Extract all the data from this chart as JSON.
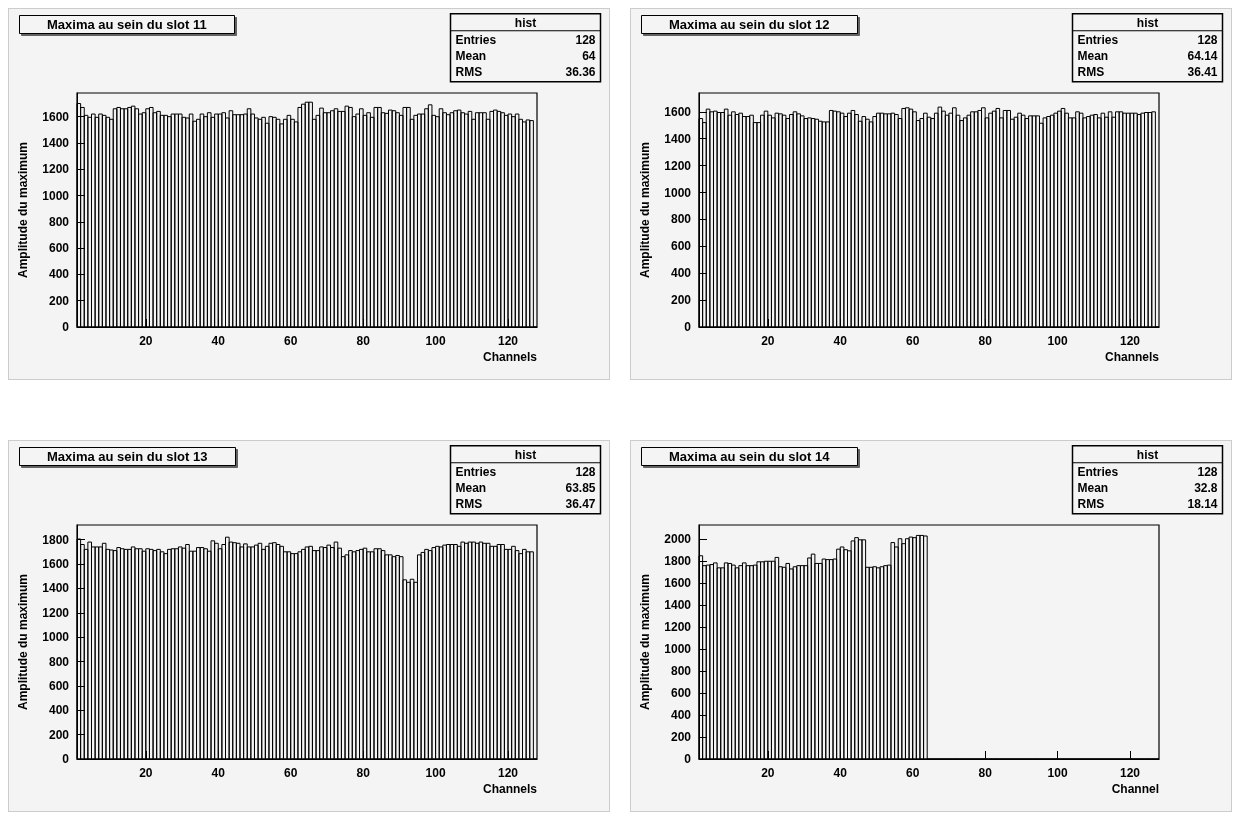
{
  "chart_data": [
    {
      "type": "histogram",
      "title": "Maxima au sein du slot 11",
      "xlabel": "Channels",
      "ylabel": "Amplitude du maximum",
      "color": "#000000",
      "xlim": [
        1,
        128
      ],
      "xticks": [
        20,
        40,
        60,
        80,
        100,
        120
      ],
      "ylim": [
        0,
        1780
      ],
      "yticks": [
        0,
        200,
        400,
        600,
        800,
        1000,
        1200,
        1400,
        1600
      ],
      "annotations": [
        "hist",
        "Entries",
        "128",
        "Mean",
        "64",
        "RMS",
        "36.36"
      ],
      "bins": [
        1,
        2,
        3,
        4,
        5,
        6,
        7,
        8,
        9,
        10,
        11,
        12,
        13,
        14,
        15,
        16,
        17,
        18,
        19,
        20,
        21,
        22,
        23,
        24,
        25,
        26,
        27,
        28,
        29,
        30,
        31,
        32,
        33,
        34,
        35,
        36,
        37,
        38,
        39,
        40,
        41,
        42,
        43,
        44,
        45,
        46,
        47,
        48,
        49,
        50,
        51,
        52,
        53,
        54,
        55,
        56,
        57,
        58,
        59,
        60,
        61,
        62,
        63,
        64,
        65,
        66,
        67,
        68,
        69,
        70,
        71,
        72,
        73,
        74,
        75,
        76,
        77,
        78,
        79,
        80,
        81,
        82,
        83,
        84,
        85,
        86,
        87,
        88,
        89,
        90,
        91,
        92,
        93,
        94,
        95,
        96,
        97,
        98,
        99,
        100,
        101,
        102,
        103,
        104,
        105,
        106,
        107,
        108,
        109,
        110,
        111,
        112,
        113,
        114,
        115,
        116,
        117,
        118,
        119,
        120,
        121,
        122,
        123,
        124,
        125,
        126,
        127,
        128
      ],
      "values": [
        1700,
        1670,
        1610,
        1595,
        1620,
        1595,
        1620,
        1610,
        1595,
        1580,
        1660,
        1670,
        1660,
        1660,
        1670,
        1680,
        1660,
        1620,
        1630,
        1660,
        1670,
        1630,
        1640,
        1610,
        1610,
        1600,
        1620,
        1620,
        1620,
        1595,
        1590,
        1620,
        1565,
        1580,
        1620,
        1600,
        1630,
        1595,
        1620,
        1620,
        1630,
        1590,
        1645,
        1615,
        1615,
        1615,
        1620,
        1660,
        1620,
        1590,
        1580,
        1595,
        1550,
        1600,
        1595,
        1580,
        1545,
        1580,
        1610,
        1580,
        1560,
        1670,
        1695,
        1710,
        1710,
        1580,
        1610,
        1665,
        1630,
        1630,
        1645,
        1660,
        1640,
        1640,
        1680,
        1670,
        1600,
        1620,
        1660,
        1610,
        1630,
        1595,
        1670,
        1670,
        1630,
        1625,
        1650,
        1645,
        1630,
        1610,
        1670,
        1670,
        1580,
        1610,
        1620,
        1620,
        1660,
        1690,
        1610,
        1600,
        1660,
        1630,
        1615,
        1630,
        1645,
        1650,
        1630,
        1620,
        1640,
        1580,
        1630,
        1630,
        1630,
        1580,
        1640,
        1650,
        1640,
        1630,
        1610,
        1620,
        1600,
        1620,
        1580,
        1560,
        1575,
        1570,
        0
      ]
    },
    {
      "type": "histogram",
      "title": "Maxima au sein du slot 12",
      "xlabel": "Channels",
      "ylabel": "Amplitude du maximum",
      "color": "#000000",
      "xlim": [
        1,
        128
      ],
      "xticks": [
        20,
        40,
        60,
        80,
        100,
        120
      ],
      "ylim": [
        0,
        1740
      ],
      "yticks": [
        0,
        200,
        400,
        600,
        800,
        1000,
        1200,
        1400,
        1600
      ],
      "annotations": [
        "hist",
        "Entries",
        "128",
        "Mean",
        "64.14",
        "RMS",
        "36.41"
      ],
      "bins": [
        1,
        2,
        3,
        4,
        5,
        6,
        7,
        8,
        9,
        10,
        11,
        12,
        13,
        14,
        15,
        16,
        17,
        18,
        19,
        20,
        21,
        22,
        23,
        24,
        25,
        26,
        27,
        28,
        29,
        30,
        31,
        32,
        33,
        34,
        35,
        36,
        37,
        38,
        39,
        40,
        41,
        42,
        43,
        44,
        45,
        46,
        47,
        48,
        49,
        50,
        51,
        52,
        53,
        54,
        55,
        56,
        57,
        58,
        59,
        60,
        61,
        62,
        63,
        64,
        65,
        66,
        67,
        68,
        69,
        70,
        71,
        72,
        73,
        74,
        75,
        76,
        77,
        78,
        79,
        80,
        81,
        82,
        83,
        84,
        85,
        86,
        87,
        88,
        89,
        90,
        91,
        92,
        93,
        94,
        95,
        96,
        97,
        98,
        99,
        100,
        101,
        102,
        103,
        104,
        105,
        106,
        107,
        108,
        109,
        110,
        111,
        112,
        113,
        114,
        115,
        116,
        117,
        118,
        119,
        120,
        121,
        122,
        123,
        124,
        125,
        126,
        127,
        128
      ],
      "values": [
        1550,
        1520,
        1620,
        1600,
        1605,
        1595,
        1595,
        1620,
        1575,
        1600,
        1580,
        1590,
        1565,
        1565,
        1575,
        1520,
        1520,
        1575,
        1605,
        1575,
        1555,
        1590,
        1585,
        1575,
        1550,
        1580,
        1600,
        1585,
        1570,
        1550,
        1555,
        1550,
        1545,
        1530,
        1525,
        1525,
        1610,
        1605,
        1600,
        1590,
        1565,
        1590,
        1610,
        1580,
        1530,
        1565,
        1545,
        1525,
        1565,
        1590,
        1590,
        1585,
        1585,
        1590,
        1580,
        1550,
        1625,
        1630,
        1620,
        1600,
        1535,
        1550,
        1590,
        1560,
        1550,
        1590,
        1635,
        1605,
        1575,
        1590,
        1630,
        1575,
        1535,
        1555,
        1575,
        1600,
        1600,
        1610,
        1630,
        1555,
        1590,
        1605,
        1625,
        1555,
        1610,
        1610,
        1545,
        1560,
        1590,
        1575,
        1550,
        1570,
        1570,
        1570,
        1515,
        1555,
        1565,
        1575,
        1590,
        1605,
        1625,
        1590,
        1555,
        1555,
        1600,
        1590,
        1555,
        1565,
        1575,
        1580,
        1555,
        1590,
        1560,
        1600,
        1560,
        1600,
        1600,
        1590,
        1590,
        1590,
        1590,
        1580,
        1590,
        1595,
        1595,
        1600,
        0
      ]
    },
    {
      "type": "histogram",
      "title": "Maxima au sein du slot 13",
      "xlabel": "Channels",
      "ylabel": "Amplitude du maximum",
      "color": "#000000",
      "xlim": [
        1,
        128
      ],
      "xticks": [
        20,
        40,
        60,
        80,
        100,
        120
      ],
      "ylim": [
        0,
        1920
      ],
      "yticks": [
        0,
        200,
        400,
        600,
        800,
        1000,
        1200,
        1400,
        1600,
        1800
      ],
      "annotations": [
        "hist",
        "Entries",
        "128",
        "Mean",
        "63.85",
        "RMS",
        "36.47"
      ],
      "bins": [
        1,
        2,
        3,
        4,
        5,
        6,
        7,
        8,
        9,
        10,
        11,
        12,
        13,
        14,
        15,
        16,
        17,
        18,
        19,
        20,
        21,
        22,
        23,
        24,
        25,
        26,
        27,
        28,
        29,
        30,
        31,
        32,
        33,
        34,
        35,
        36,
        37,
        38,
        39,
        40,
        41,
        42,
        43,
        44,
        45,
        46,
        47,
        48,
        49,
        50,
        51,
        52,
        53,
        54,
        55,
        56,
        57,
        58,
        59,
        60,
        61,
        62,
        63,
        64,
        65,
        66,
        67,
        68,
        69,
        70,
        71,
        72,
        73,
        74,
        75,
        76,
        77,
        78,
        79,
        80,
        81,
        82,
        83,
        84,
        85,
        86,
        87,
        88,
        89,
        90,
        91,
        92,
        93,
        94,
        95,
        96,
        97,
        98,
        99,
        100,
        101,
        102,
        103,
        104,
        105,
        106,
        107,
        108,
        109,
        110,
        111,
        112,
        113,
        114,
        115,
        116,
        117,
        118,
        119,
        120,
        121,
        122,
        123,
        124,
        125,
        126,
        127,
        128
      ],
      "values": [
        1805,
        1760,
        1720,
        1780,
        1740,
        1740,
        1740,
        1770,
        1720,
        1715,
        1710,
        1735,
        1725,
        1720,
        1720,
        1740,
        1725,
        1725,
        1705,
        1725,
        1720,
        1710,
        1720,
        1700,
        1685,
        1720,
        1725,
        1725,
        1740,
        1730,
        1760,
        1705,
        1705,
        1735,
        1735,
        1725,
        1705,
        1790,
        1770,
        1725,
        1760,
        1820,
        1780,
        1775,
        1770,
        1740,
        1765,
        1740,
        1740,
        1755,
        1770,
        1720,
        1745,
        1770,
        1775,
        1760,
        1745,
        1700,
        1700,
        1685,
        1685,
        1700,
        1720,
        1740,
        1745,
        1710,
        1710,
        1740,
        1735,
        1755,
        1735,
        1780,
        1730,
        1660,
        1675,
        1710,
        1700,
        1710,
        1720,
        1730,
        1700,
        1700,
        1725,
        1725,
        1710,
        1675,
        1675,
        1660,
        1670,
        1660,
        1470,
        1450,
        1475,
        1450,
        1675,
        1695,
        1720,
        1710,
        1735,
        1745,
        1740,
        1755,
        1760,
        1760,
        1760,
        1745,
        1780,
        1770,
        1780,
        1780,
        1770,
        1780,
        1770,
        1770,
        1745,
        1745,
        1760,
        1760,
        1720,
        1720,
        1745,
        1710,
        1685,
        1720,
        1700,
        1700,
        0
      ]
    },
    {
      "type": "histogram",
      "title": "Maxima au sein du slot 14",
      "xlabel": "Channel",
      "ylabel": "Amplitude du maximum",
      "color": "#000000",
      "xlim": [
        1,
        128
      ],
      "xticks": [
        20,
        40,
        60,
        80,
        100,
        120
      ],
      "ylim": [
        0,
        2130
      ],
      "yticks": [
        0,
        200,
        400,
        600,
        800,
        1000,
        1200,
        1400,
        1600,
        1800,
        2000
      ],
      "annotations": [
        "hist",
        "Entries",
        "128",
        "Mean",
        "32.8",
        "RMS",
        "18.14"
      ],
      "bins": [
        1,
        2,
        3,
        4,
        5,
        6,
        7,
        8,
        9,
        10,
        11,
        12,
        13,
        14,
        15,
        16,
        17,
        18,
        19,
        20,
        21,
        22,
        23,
        24,
        25,
        26,
        27,
        28,
        29,
        30,
        31,
        32,
        33,
        34,
        35,
        36,
        37,
        38,
        39,
        40,
        41,
        42,
        43,
        44,
        45,
        46,
        47,
        48,
        49,
        50,
        51,
        52,
        53,
        54,
        55,
        56,
        57,
        58,
        59,
        60,
        61,
        62,
        63,
        64,
        65,
        66,
        67,
        68,
        69,
        70,
        71,
        72,
        73,
        74,
        75,
        76,
        77,
        78,
        79,
        80,
        81,
        82,
        83,
        84,
        85,
        86,
        87,
        88,
        89,
        90,
        91,
        92,
        93,
        94,
        95,
        96,
        97,
        98,
        99,
        100,
        101,
        102,
        103,
        104,
        105,
        106,
        107,
        108,
        109,
        110,
        111,
        112,
        113,
        114,
        115,
        116,
        117,
        118,
        119,
        120,
        121,
        122,
        123,
        124,
        125,
        126,
        127,
        128
      ],
      "values": [
        1850,
        1760,
        1765,
        1770,
        1785,
        1740,
        1740,
        1785,
        1780,
        1765,
        1740,
        1760,
        1785,
        1760,
        1760,
        1765,
        1795,
        1795,
        1800,
        1800,
        1800,
        1835,
        1750,
        1745,
        1780,
        1730,
        1750,
        1760,
        1760,
        1760,
        1830,
        1865,
        1780,
        1780,
        1820,
        1815,
        1815,
        1820,
        1910,
        1930,
        1905,
        1895,
        1985,
        2015,
        1995,
        1995,
        1745,
        1745,
        1750,
        1740,
        1750,
        1760,
        1765,
        1970,
        1930,
        2005,
        1960,
        2005,
        2020,
        2015,
        2035,
        2035,
        2030,
        0,
        0,
        0,
        0,
        0,
        0,
        0,
        0,
        0,
        0,
        0,
        0,
        0,
        0,
        0,
        0,
        0,
        0,
        0,
        0,
        0,
        0,
        0,
        0,
        0,
        0,
        0,
        0,
        0,
        0,
        0,
        0,
        0,
        0,
        0,
        0,
        0,
        0,
        0,
        0,
        0,
        0,
        0,
        0,
        0,
        0,
        0,
        0,
        0,
        0,
        0,
        0,
        0,
        0,
        0,
        0,
        0,
        0,
        0,
        0,
        0,
        0,
        0,
        0
      ]
    }
  ]
}
